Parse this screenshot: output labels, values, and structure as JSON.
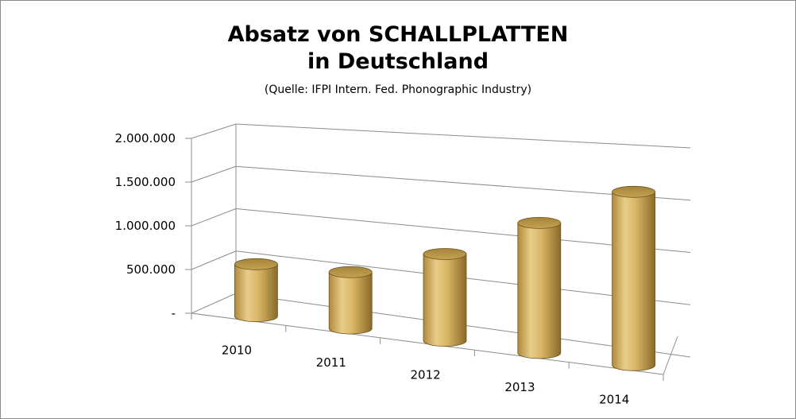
{
  "chart_data": {
    "type": "bar",
    "style": "3d-cylinder",
    "title_line1": "Absatz von SCHALLPLATTEN",
    "title_line2": "in Deutschland",
    "subtitle": "(Quelle: IFPI Intern. Fed. Phonographic Industry)",
    "categories": [
      "2010",
      "2011",
      "2012",
      "2013",
      "2014"
    ],
    "values": [
      600000,
      650000,
      1000000,
      1500000,
      2000000
    ],
    "ylim": [
      0,
      2000000
    ],
    "ytick_labels": [
      "-",
      "500.000",
      "1.000.000",
      "1.500.000",
      "2.000.000"
    ],
    "grid": true,
    "legend": "none",
    "colors": {
      "bar": "#d4b060",
      "bar_dark": "#8a6a28",
      "bar_light": "#ecd394",
      "grid": "#8c8c8c"
    }
  }
}
